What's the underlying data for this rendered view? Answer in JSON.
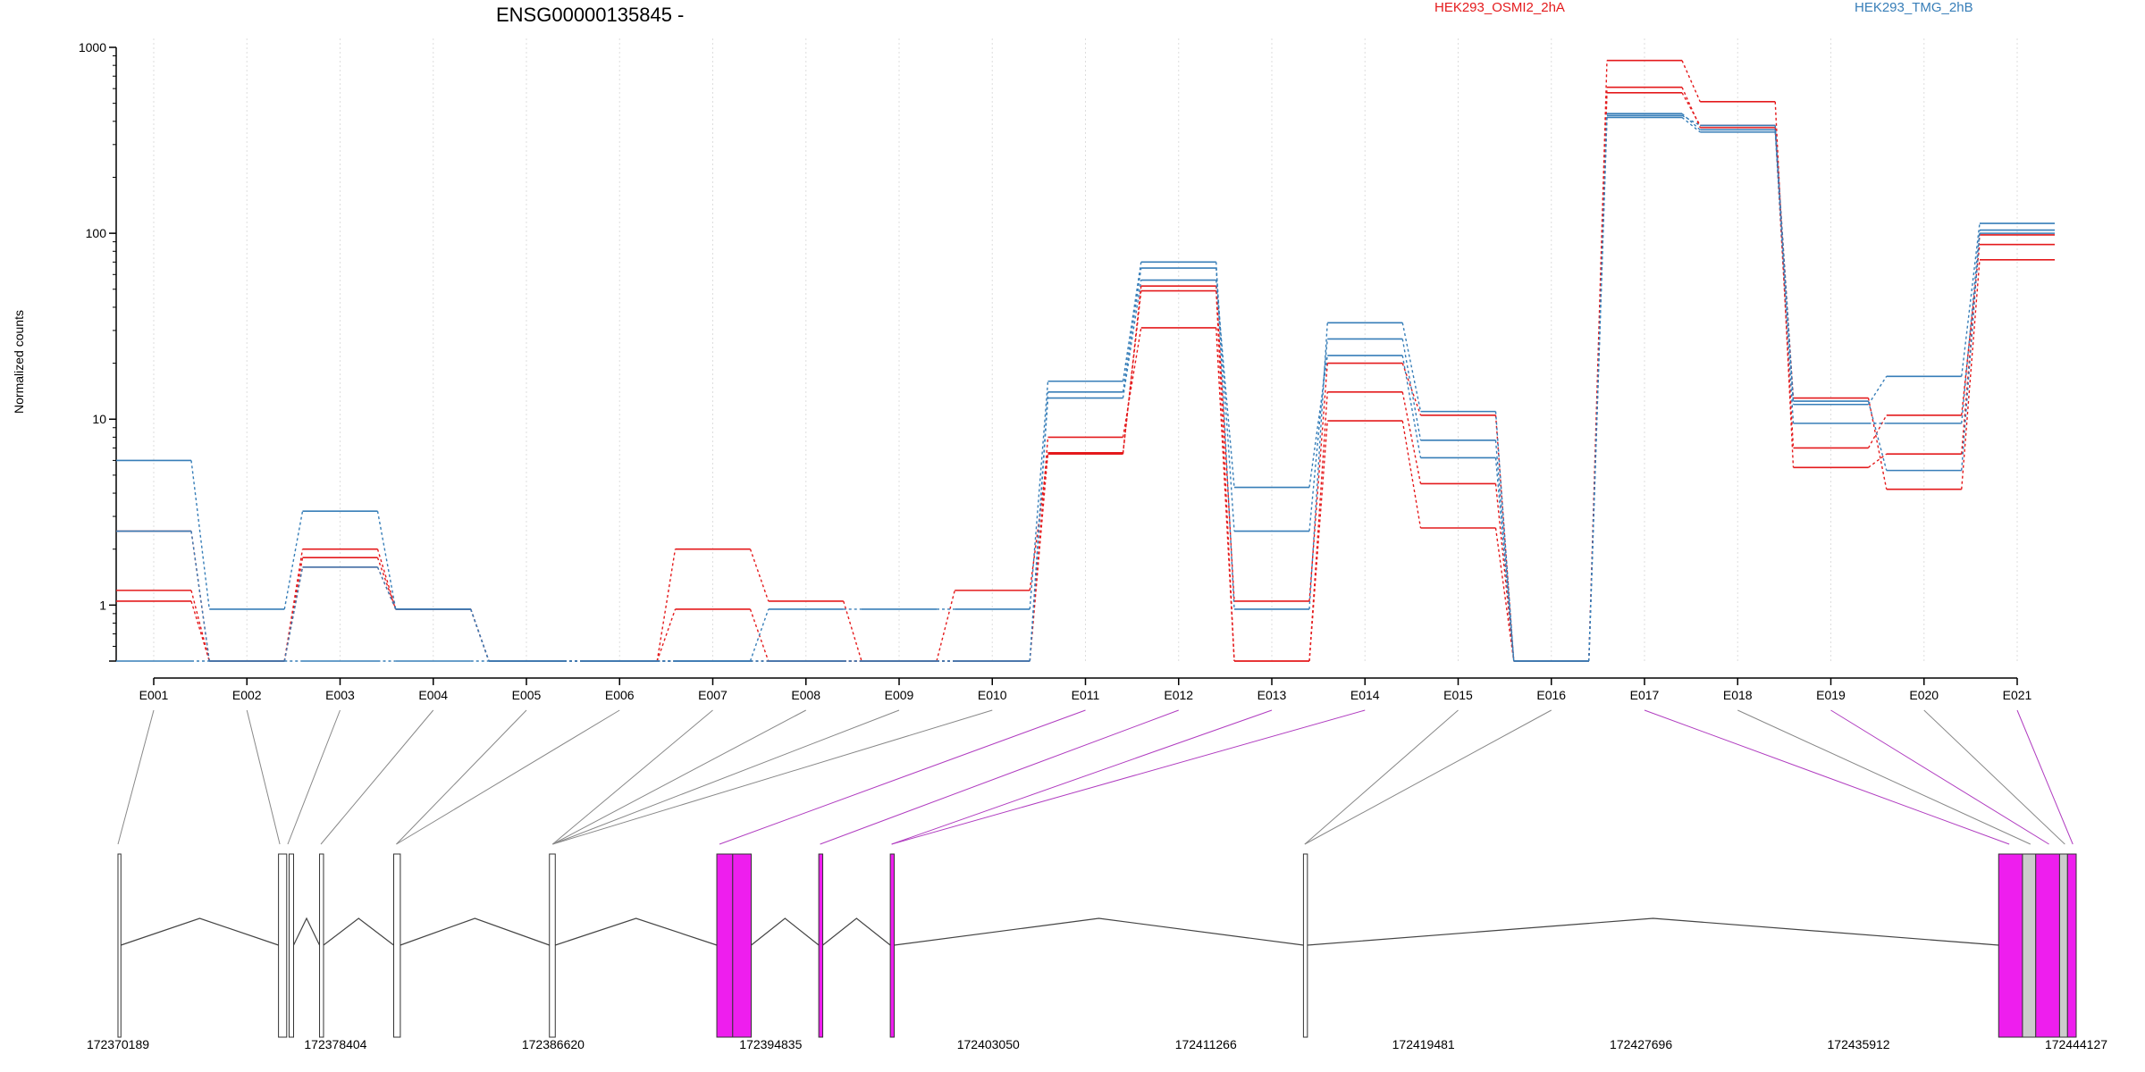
{
  "chart_data": {
    "type": "line",
    "title": "ENSG00000135845 -",
    "ylabel": "Normalized counts",
    "yscale": "log",
    "ylim": [
      0.5,
      1000
    ],
    "ytick_values": [
      1,
      10,
      100,
      1000
    ],
    "ytick_labels": [
      "1",
      "10",
      "100",
      "1000"
    ],
    "grid": "vertical dotted lines at exon centers",
    "legend_placement": "top",
    "categories": [
      "E001",
      "E002",
      "E003",
      "E004",
      "E005",
      "E006",
      "E007",
      "E008",
      "E009",
      "E010",
      "E011",
      "E012",
      "E013",
      "E014",
      "E015",
      "E016",
      "E017",
      "E018",
      "E019",
      "E020",
      "E021"
    ],
    "series": [
      {
        "name": "HEK293_OSMI2_2hA",
        "color": "#e41a1c",
        "values": [
          1.2,
          0.5,
          2.0,
          0.95,
          0.5,
          0.5,
          2.0,
          1.05,
          0.5,
          1.2,
          6.5,
          52,
          1.05,
          20,
          10.5,
          0.5,
          850,
          510,
          5.5,
          6.5,
          98
        ]
      },
      {
        "name": "",
        "color": "#e41a1c",
        "values": [
          1.05,
          0.5,
          1.8,
          0.95,
          0.5,
          0.5,
          0.95,
          0.5,
          0.5,
          0.5,
          6.6,
          49,
          0.5,
          14,
          4.5,
          0.5,
          610,
          370,
          7.0,
          10.5,
          87
        ]
      },
      {
        "name": "",
        "color": "#e41a1c",
        "values": [
          2.5,
          0.5,
          1.6,
          0.95,
          0.5,
          0.5,
          0.5,
          0.5,
          0.5,
          0.5,
          8.0,
          31,
          0.5,
          9.8,
          2.6,
          0.5,
          570,
          380,
          13,
          4.2,
          72
        ]
      },
      {
        "name": "HEK293_TMG_2hB",
        "color": "#377eb8",
        "values": [
          6.0,
          0.95,
          3.2,
          0.95,
          0.5,
          0.5,
          0.5,
          0.95,
          0.95,
          0.95,
          16,
          70,
          0.95,
          33,
          11,
          0.5,
          430,
          380,
          12,
          17,
          113
        ]
      },
      {
        "name": "",
        "color": "#377eb8",
        "values": [
          0.5,
          0.5,
          0.5,
          0.5,
          0.5,
          0.5,
          0.5,
          0.5,
          0.5,
          0.5,
          14,
          65,
          2.5,
          27,
          7.7,
          0.5,
          420,
          350,
          9.5,
          9.5,
          104
        ]
      },
      {
        "name": "",
        "color": "#377eb8",
        "values": [
          2.5,
          0.5,
          1.6,
          0.95,
          0.5,
          0.5,
          0.5,
          0.5,
          0.5,
          0.5,
          13,
          56,
          4.3,
          22,
          6.2,
          0.5,
          440,
          360,
          12.5,
          5.3,
          100
        ]
      }
    ],
    "gene_model": {
      "coordinate_labels": [
        "172370189",
        "172378404",
        "172386620",
        "172394835",
        "172403050",
        "172411266",
        "172419481",
        "172427696",
        "172435912",
        "172444127"
      ],
      "coordinate_ticks": [
        172370189,
        172378404,
        172386620,
        172394835,
        172403050,
        172411266,
        172419481,
        172427696,
        172435912,
        172444127
      ],
      "exon_colors": {
        "significant": "#ee1eee",
        "normal": "#ffffff",
        "light": "#cccccc"
      },
      "exons": [
        {
          "start": 172370189,
          "end": 172370300,
          "color": "normal"
        },
        {
          "start": 172376250,
          "end": 172376560,
          "color": "normal"
        },
        {
          "start": 172376650,
          "end": 172376820,
          "color": "normal"
        },
        {
          "start": 172377800,
          "end": 172377950,
          "color": "normal"
        },
        {
          "start": 172380600,
          "end": 172380850,
          "color": "normal"
        },
        {
          "start": 172386480,
          "end": 172386700,
          "color": "normal"
        },
        {
          "start": 172392800,
          "end": 172393400,
          "color": "significant"
        },
        {
          "start": 172393400,
          "end": 172394100,
          "color": "significant"
        },
        {
          "start": 172396650,
          "end": 172396800,
          "color": "significant"
        },
        {
          "start": 172399350,
          "end": 172399500,
          "color": "significant"
        },
        {
          "start": 172414950,
          "end": 172415100,
          "color": "normal"
        },
        {
          "start": 172441200,
          "end": 172442100,
          "color": "significant"
        },
        {
          "start": 172442100,
          "end": 172442600,
          "color": "light"
        },
        {
          "start": 172442600,
          "end": 172443500,
          "color": "significant"
        },
        {
          "start": 172443500,
          "end": 172443800,
          "color": "light"
        },
        {
          "start": 172443800,
          "end": 172444127,
          "color": "significant"
        }
      ],
      "exon_bin_genomic_anchor": [
        172370189,
        172376300,
        172376600,
        172377850,
        172380700,
        172380700,
        172386600,
        172386600,
        172386600,
        172386600,
        172392900,
        172396700,
        172399400,
        172399400,
        172415000,
        172415000,
        172441600,
        172442400,
        172443100,
        172443700,
        172444000
      ],
      "exon_bin_significant": [
        false,
        false,
        false,
        false,
        false,
        false,
        false,
        false,
        false,
        false,
        true,
        true,
        true,
        true,
        false,
        false,
        true,
        false,
        true,
        false,
        true
      ]
    }
  }
}
